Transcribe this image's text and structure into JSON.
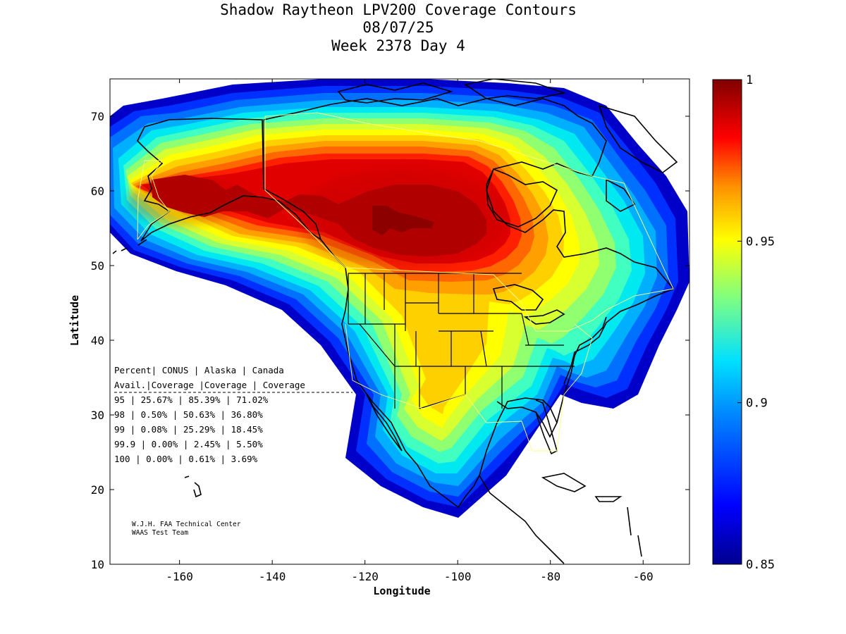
{
  "title": {
    "line1": "Shadow Raytheon LPV200 Coverage Contours",
    "line2": "08/07/25",
    "line3": "Week 2378 Day 4"
  },
  "axes": {
    "xlabel": "Longitude",
    "ylabel": "Latitude",
    "xlim": [
      -175,
      -50
    ],
    "ylim": [
      10,
      75
    ],
    "xticks": [
      "-160",
      "-140",
      "-120",
      "-100",
      "-80",
      "-60"
    ],
    "yticks": [
      "10",
      "20",
      "30",
      "40",
      "50",
      "60",
      "70"
    ]
  },
  "colorbar": {
    "range": [
      0.85,
      1
    ],
    "labels": [
      "1",
      "0.95",
      "0.9",
      "0.85"
    ]
  },
  "table": {
    "header1": "Percent| CONUS   | Alaska  | Canada",
    "header2": " Avail.|Coverage |Coverage | Coverage",
    "rows": [
      "  95   | 25.67%  | 85.39% | 71.02%",
      "  98   | 0.50%  | 50.63% | 36.80%",
      "  99   | 0.08%  | 25.29% | 18.45%",
      "99.9   | 0.00%  | 2.45% | 5.50%",
      " 100   | 0.00%  | 0.61% | 3.69%"
    ]
  },
  "credit": {
    "line1": "W.J.H. FAA Technical Center",
    "line2": "WAAS Test Team"
  },
  "chart_data": {
    "type": "heatmap",
    "variable": "LPV200 availability",
    "xlim": [
      -175,
      -50
    ],
    "ylim": [
      10,
      75
    ],
    "zlim": [
      0.85,
      1
    ],
    "contour_levels": [
      {
        "level": 0.86,
        "color": "#0000c8"
      },
      {
        "level": 0.87,
        "color": "#0030ff"
      },
      {
        "level": 0.88,
        "color": "#0070ff"
      },
      {
        "level": 0.89,
        "color": "#00b0ff"
      },
      {
        "level": 0.9,
        "color": "#00e8f0"
      },
      {
        "level": 0.91,
        "color": "#40ffc0"
      },
      {
        "level": 0.92,
        "color": "#90ff70"
      },
      {
        "level": 0.93,
        "color": "#d8ff30"
      },
      {
        "level": 0.94,
        "color": "#ffff00"
      },
      {
        "level": 0.95,
        "color": "#ffd000"
      },
      {
        "level": 0.96,
        "color": "#ffa000"
      },
      {
        "level": 0.97,
        "color": "#ff6800"
      },
      {
        "level": 0.98,
        "color": "#ff2000"
      },
      {
        "level": 0.99,
        "color": "#e00000"
      },
      {
        "level": 0.995,
        "color": "#b00000"
      },
      {
        "level": 1.0,
        "color": "#800000"
      }
    ],
    "coverage_table": {
      "columns": [
        "Percent Avail.",
        "CONUS Coverage",
        "Alaska Coverage",
        "Canada Coverage"
      ],
      "rows": [
        [
          "95",
          "25.67%",
          "85.39%",
          "71.02%"
        ],
        [
          "98",
          "0.50%",
          "50.63%",
          "36.80%"
        ],
        [
          "99",
          "0.08%",
          "25.29%",
          "18.45%"
        ],
        [
          "99.9",
          "0.00%",
          "2.45%",
          "5.50%"
        ],
        [
          "100",
          "0.00%",
          "0.61%",
          "3.69%"
        ]
      ]
    }
  }
}
